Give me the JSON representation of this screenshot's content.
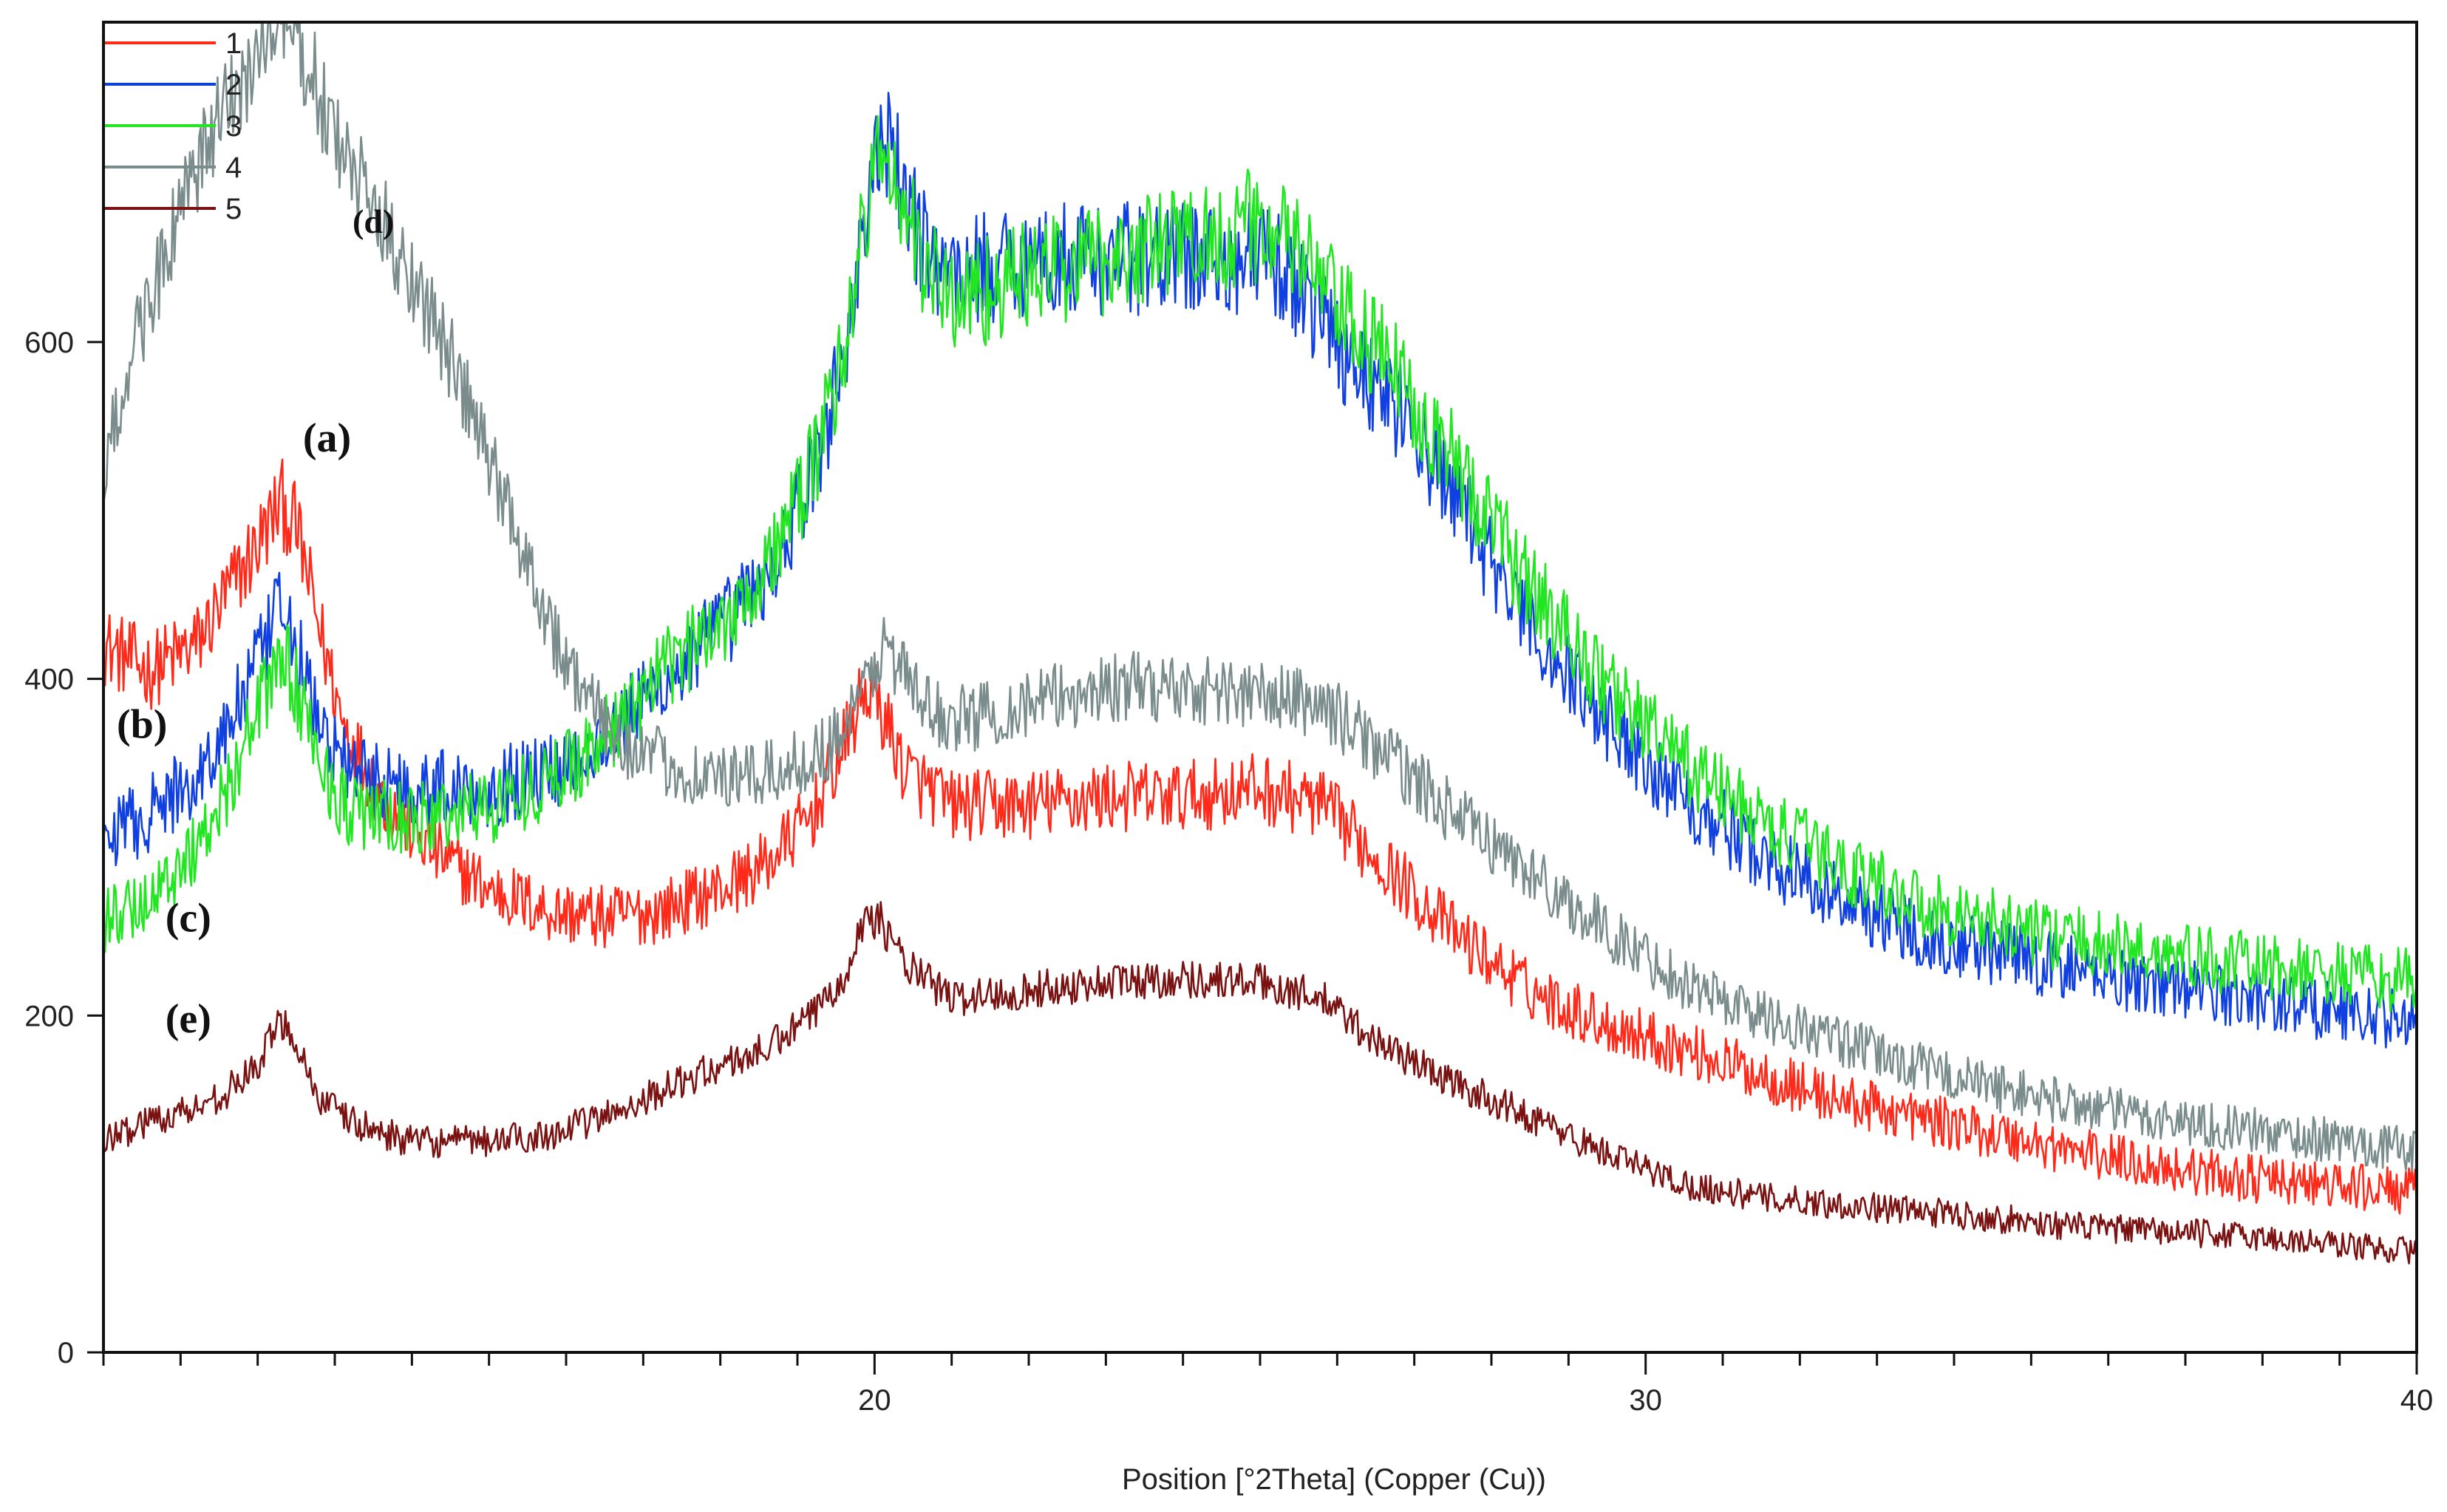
{
  "chart_data": {
    "type": "line",
    "title": "",
    "xlabel": "Position [°2Theta] (Copper (Cu))",
    "ylabel": "",
    "xlim": [
      10,
      40
    ],
    "ylim": [
      0,
      790
    ],
    "x_ticks": [
      20,
      30,
      40
    ],
    "x_minor_step": 1,
    "y_ticks": [
      0,
      200,
      400,
      600
    ],
    "grid": false,
    "legend": "top-left",
    "series": [
      {
        "name": "1",
        "color": "#ff2a1a",
        "noise": 22,
        "points": [
          [
            10,
            420
          ],
          [
            10.6,
            405
          ],
          [
            11.2,
            420
          ],
          [
            11.6,
            450
          ],
          [
            12.0,
            480
          ],
          [
            12.3,
            505
          ],
          [
            12.5,
            490
          ],
          [
            12.8,
            430
          ],
          [
            13.1,
            375
          ],
          [
            13.6,
            330
          ],
          [
            14.2,
            300
          ],
          [
            15.0,
            275
          ],
          [
            15.8,
            262
          ],
          [
            16.5,
            258
          ],
          [
            17.2,
            262
          ],
          [
            18.0,
            275
          ],
          [
            18.6,
            290
          ],
          [
            19.2,
            320
          ],
          [
            19.6,
            360
          ],
          [
            19.9,
            395
          ],
          [
            20.1,
            380
          ],
          [
            20.4,
            345
          ],
          [
            21.0,
            325
          ],
          [
            22.0,
            325
          ],
          [
            23.0,
            330
          ],
          [
            24.0,
            330
          ],
          [
            25.0,
            335
          ],
          [
            25.8,
            325
          ],
          [
            26.5,
            295
          ],
          [
            27.5,
            250
          ],
          [
            28.5,
            215
          ],
          [
            29.5,
            195
          ],
          [
            30.5,
            180
          ],
          [
            31.5,
            165
          ],
          [
            32.5,
            150
          ],
          [
            33.5,
            140
          ],
          [
            34.5,
            130
          ],
          [
            35.5,
            120
          ],
          [
            36.5,
            112
          ],
          [
            37.5,
            105
          ],
          [
            38.5,
            100
          ],
          [
            39.5,
            97
          ],
          [
            40,
            95
          ]
        ]
      },
      {
        "name": "2",
        "color": "#1040e0",
        "noise": 24,
        "points": [
          [
            10,
            305
          ],
          [
            10.6,
            320
          ],
          [
            11.2,
            340
          ],
          [
            11.6,
            370
          ],
          [
            12.0,
            410
          ],
          [
            12.3,
            440
          ],
          [
            12.5,
            420
          ],
          [
            12.8,
            370
          ],
          [
            13.2,
            345
          ],
          [
            14.0,
            335
          ],
          [
            15.0,
            335
          ],
          [
            15.8,
            345
          ],
          [
            16.5,
            365
          ],
          [
            17.2,
            395
          ],
          [
            18.0,
            430
          ],
          [
            18.6,
            460
          ],
          [
            19.2,
            520
          ],
          [
            19.6,
            590
          ],
          [
            19.9,
            680
          ],
          [
            20.1,
            720
          ],
          [
            20.3,
            700
          ],
          [
            20.6,
            660
          ],
          [
            21.0,
            640
          ],
          [
            22.0,
            650
          ],
          [
            23.0,
            650
          ],
          [
            24.0,
            650
          ],
          [
            25.0,
            650
          ],
          [
            25.6,
            630
          ],
          [
            26.0,
            600
          ],
          [
            26.8,
            560
          ],
          [
            27.5,
            510
          ],
          [
            28.5,
            430
          ],
          [
            29.5,
            375
          ],
          [
            30.5,
            330
          ],
          [
            31.5,
            295
          ],
          [
            32.5,
            270
          ],
          [
            33.5,
            250
          ],
          [
            34.5,
            238
          ],
          [
            35.5,
            228
          ],
          [
            36.5,
            220
          ],
          [
            37.5,
            213
          ],
          [
            38.5,
            206
          ],
          [
            39.5,
            200
          ],
          [
            40,
            198
          ]
        ]
      },
      {
        "name": "3",
        "color": "#22e622",
        "noise": 24,
        "points": [
          [
            10,
            255
          ],
          [
            10.6,
            270
          ],
          [
            11.2,
            300
          ],
          [
            11.6,
            335
          ],
          [
            12.0,
            380
          ],
          [
            12.3,
            415
          ],
          [
            12.5,
            395
          ],
          [
            12.8,
            350
          ],
          [
            13.2,
            320
          ],
          [
            14.0,
            315
          ],
          [
            15.0,
            325
          ],
          [
            15.8,
            340
          ],
          [
            16.5,
            365
          ],
          [
            17.2,
            400
          ],
          [
            18.0,
            435
          ],
          [
            18.6,
            465
          ],
          [
            19.2,
            525
          ],
          [
            19.6,
            595
          ],
          [
            19.9,
            680
          ],
          [
            20.1,
            715
          ],
          [
            20.3,
            690
          ],
          [
            20.6,
            650
          ],
          [
            21.0,
            625
          ],
          [
            22.0,
            640
          ],
          [
            23.0,
            650
          ],
          [
            24.0,
            660
          ],
          [
            25.0,
            670
          ],
          [
            25.6,
            650
          ],
          [
            26.0,
            620
          ],
          [
            26.8,
            580
          ],
          [
            27.5,
            530
          ],
          [
            28.5,
            455
          ],
          [
            29.5,
            395
          ],
          [
            30.5,
            350
          ],
          [
            31.5,
            315
          ],
          [
            32.5,
            290
          ],
          [
            33.5,
            268
          ],
          [
            34.5,
            255
          ],
          [
            35.5,
            245
          ],
          [
            36.5,
            238
          ],
          [
            37.5,
            232
          ],
          [
            38.5,
            226
          ],
          [
            39.5,
            222
          ],
          [
            40,
            220
          ]
        ]
      },
      {
        "name": "4",
        "color": "#7a8c8c",
        "noise": 20,
        "points": [
          [
            10,
            520
          ],
          [
            10.4,
            600
          ],
          [
            10.8,
            650
          ],
          [
            11.2,
            700
          ],
          [
            11.6,
            740
          ],
          [
            12.0,
            770
          ],
          [
            12.3,
            790
          ],
          [
            12.6,
            770
          ],
          [
            13.0,
            720
          ],
          [
            13.5,
            680
          ],
          [
            14.0,
            640
          ],
          [
            14.5,
            590
          ],
          [
            15.0,
            530
          ],
          [
            15.5,
            470
          ],
          [
            15.9,
            420
          ],
          [
            16.3,
            385
          ],
          [
            16.8,
            360
          ],
          [
            17.5,
            345
          ],
          [
            18.2,
            340
          ],
          [
            18.8,
            345
          ],
          [
            19.4,
            360
          ],
          [
            19.8,
            385
          ],
          [
            20.1,
            420
          ],
          [
            20.3,
            410
          ],
          [
            20.6,
            385
          ],
          [
            21.0,
            375
          ],
          [
            22.0,
            385
          ],
          [
            23.0,
            395
          ],
          [
            24.0,
            395
          ],
          [
            25.0,
            390
          ],
          [
            25.8,
            385
          ],
          [
            26.5,
            360
          ],
          [
            27.5,
            320
          ],
          [
            28.5,
            285
          ],
          [
            29.5,
            250
          ],
          [
            30.5,
            220
          ],
          [
            31.5,
            200
          ],
          [
            32.5,
            185
          ],
          [
            33.5,
            170
          ],
          [
            34.5,
            158
          ],
          [
            35.5,
            148
          ],
          [
            36.5,
            140
          ],
          [
            37.5,
            134
          ],
          [
            38.5,
            128
          ],
          [
            39.5,
            123
          ],
          [
            40,
            120
          ]
        ]
      },
      {
        "name": "5",
        "color": "#7a1212",
        "noise": 14,
        "points": [
          [
            10,
            125
          ],
          [
            10.6,
            138
          ],
          [
            11.2,
            145
          ],
          [
            11.6,
            155
          ],
          [
            12.0,
            170
          ],
          [
            12.3,
            198
          ],
          [
            12.5,
            185
          ],
          [
            12.8,
            150
          ],
          [
            13.3,
            135
          ],
          [
            14.0,
            125
          ],
          [
            15.0,
            125
          ],
          [
            15.8,
            130
          ],
          [
            16.5,
            140
          ],
          [
            17.2,
            155
          ],
          [
            18.0,
            170
          ],
          [
            18.6,
            180
          ],
          [
            19.2,
            200
          ],
          [
            19.6,
            225
          ],
          [
            19.9,
            260
          ],
          [
            20.1,
            255
          ],
          [
            20.4,
            230
          ],
          [
            21.0,
            210
          ],
          [
            22.0,
            215
          ],
          [
            23.0,
            220
          ],
          [
            24.0,
            222
          ],
          [
            25.0,
            220
          ],
          [
            25.8,
            210
          ],
          [
            26.5,
            185
          ],
          [
            27.5,
            160
          ],
          [
            28.5,
            140
          ],
          [
            29.5,
            118
          ],
          [
            30.5,
            100
          ],
          [
            31.5,
            92
          ],
          [
            32.5,
            88
          ],
          [
            33.5,
            84
          ],
          [
            34.5,
            80
          ],
          [
            35.5,
            75
          ],
          [
            36.5,
            72
          ],
          [
            37.5,
            70
          ],
          [
            38.5,
            66
          ],
          [
            39.5,
            62
          ],
          [
            40,
            60
          ]
        ]
      }
    ],
    "annotations": [
      {
        "text": "(a)",
        "x": 12.9,
        "y": 535,
        "size": "large"
      },
      {
        "text": "(b)",
        "x": 10.5,
        "y": 365,
        "size": "large"
      },
      {
        "text": "(c)",
        "x": 11.1,
        "y": 250,
        "size": "large"
      },
      {
        "text": "(d)",
        "x": 13.5,
        "y": 665,
        "size": "small"
      },
      {
        "text": "(e)",
        "x": 11.1,
        "y": 190,
        "size": "large"
      }
    ]
  }
}
